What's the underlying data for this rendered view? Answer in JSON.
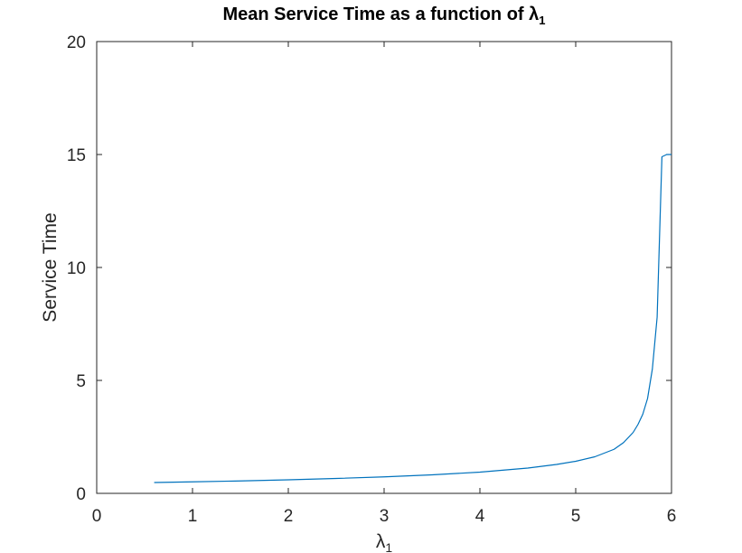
{
  "chart_data": {
    "type": "line",
    "title": {
      "text": "Mean Service Time as a function of λ",
      "subscript": "1"
    },
    "xlabel": {
      "text": "λ",
      "subscript": "1"
    },
    "ylabel": "Service Time",
    "xlim": [
      0,
      6
    ],
    "ylim": [
      0,
      20
    ],
    "xticks": [
      0,
      1,
      2,
      3,
      4,
      5,
      6
    ],
    "yticks": [
      0,
      5,
      10,
      15,
      20
    ],
    "grid": false,
    "legend": "none",
    "line_color": "#0072bd",
    "x": [
      0.6,
      1.0,
      1.5,
      2.0,
      2.5,
      3.0,
      3.5,
      4.0,
      4.5,
      4.8,
      5.0,
      5.2,
      5.4,
      5.5,
      5.6,
      5.65,
      5.7,
      5.75,
      5.8,
      5.85,
      5.9,
      5.95,
      6.0
    ],
    "y": [
      0.48,
      0.51,
      0.55,
      0.6,
      0.66,
      0.73,
      0.82,
      0.94,
      1.12,
      1.28,
      1.42,
      1.62,
      1.95,
      2.25,
      2.7,
      3.05,
      3.5,
      4.2,
      5.5,
      7.8,
      14.9,
      15.0,
      15.0
    ]
  }
}
